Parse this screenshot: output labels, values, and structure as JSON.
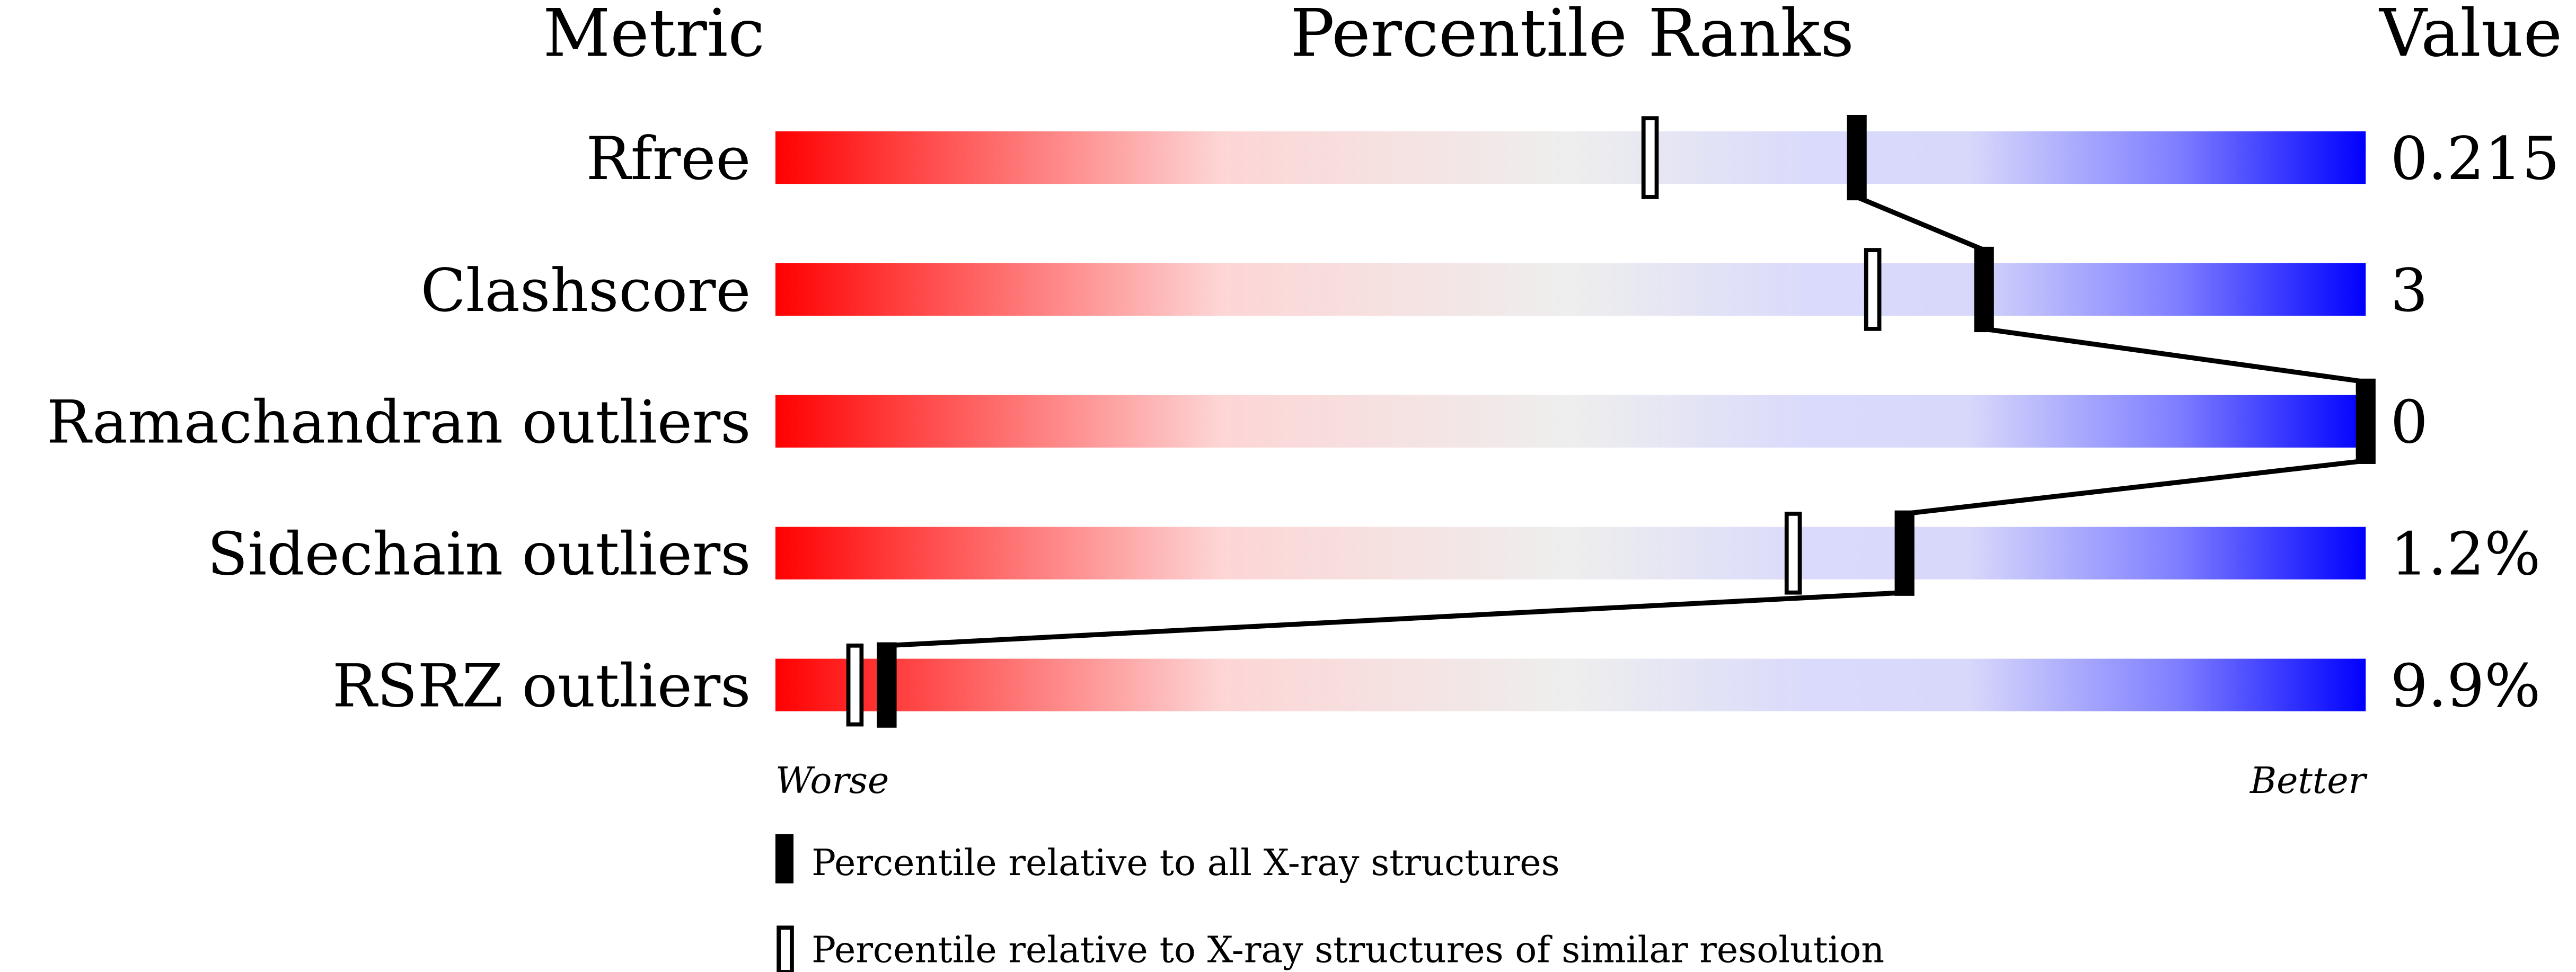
{
  "chart_data": {
    "type": "bar",
    "headers": {
      "metric": "Metric",
      "ranks": "Percentile Ranks",
      "value": "Value"
    },
    "xlim": [
      0,
      100
    ],
    "rows": [
      {
        "metric": "Rfree",
        "value": "0.215",
        "pct_all": 68,
        "pct_similar": 55
      },
      {
        "metric": "Clashscore",
        "value": "3",
        "pct_all": 76,
        "pct_similar": 69
      },
      {
        "metric": "Ramachandran outliers",
        "value": "0",
        "pct_all": 100,
        "pct_similar": 100
      },
      {
        "metric": "Sidechain outliers",
        "value": "1.2%",
        "pct_all": 71,
        "pct_similar": 64
      },
      {
        "metric": "RSRZ outliers",
        "value": "9.9%",
        "pct_all": 7,
        "pct_similar": 5
      }
    ],
    "axis_labels": {
      "left": "Worse",
      "right": "Better"
    },
    "legend": [
      {
        "marker": "filled",
        "label": "Percentile relative to all X-ray structures"
      },
      {
        "marker": "hollow",
        "label": "Percentile relative to X-ray structures of similar resolution"
      }
    ],
    "colors": {
      "worse": "#ff0000",
      "middle": "#eeeeee",
      "better": "#0000ff"
    }
  }
}
